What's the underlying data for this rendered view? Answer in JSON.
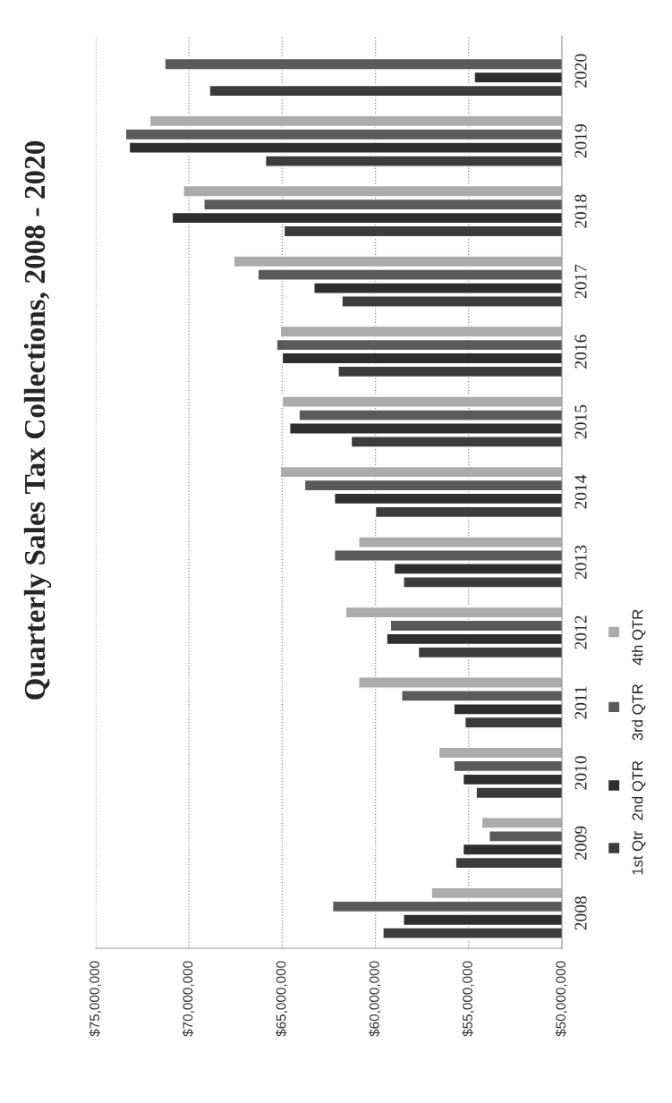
{
  "chart_data": {
    "type": "bar",
    "orientation": "horizontal",
    "title": "Quarterly Sales Tax Collections, 2008 - 2020",
    "categories": [
      "2020",
      "2019",
      "2018",
      "2017",
      "2016",
      "2015",
      "2014",
      "2013",
      "2012",
      "2011",
      "2010",
      "2009",
      "2008"
    ],
    "series": [
      {
        "name": "1st Qtr",
        "color": "#3c3c3c",
        "values": [
          68900000,
          65900000,
          64900000,
          61800000,
          62000000,
          61300000,
          60000000,
          58500000,
          57700000,
          55200000,
          54600000,
          55700000,
          59600000
        ]
      },
      {
        "name": "2nd QTR",
        "color": "#2e2e2e",
        "values": [
          54700000,
          73200000,
          70900000,
          63300000,
          65000000,
          64600000,
          62200000,
          59000000,
          59400000,
          55800000,
          55300000,
          55300000,
          58500000
        ]
      },
      {
        "name": "3rd QTR",
        "color": "#5a5a5a",
        "values": [
          71300000,
          73400000,
          69200000,
          66300000,
          65300000,
          64100000,
          63800000,
          62200000,
          59200000,
          58600000,
          55800000,
          53900000,
          62300000
        ]
      },
      {
        "name": "4th QTR",
        "color": "#ababab",
        "values": [
          null,
          72100000,
          70300000,
          67600000,
          65100000,
          65000000,
          65100000,
          60900000,
          61600000,
          60900000,
          56600000,
          54300000,
          57000000
        ]
      }
    ],
    "xlim": [
      75000000,
      50000000
    ],
    "xticks": [
      {
        "value": 75000000,
        "label": "$75,000,000"
      },
      {
        "value": 70000000,
        "label": "$70,000,000"
      },
      {
        "value": 65000000,
        "label": "$65,000,000"
      },
      {
        "value": 60000000,
        "label": "$60,000,000"
      },
      {
        "value": 55000000,
        "label": "$55,000,000"
      },
      {
        "value": 50000000,
        "label": "$50,000,000"
      }
    ],
    "grid": "x",
    "legend": "right"
  }
}
